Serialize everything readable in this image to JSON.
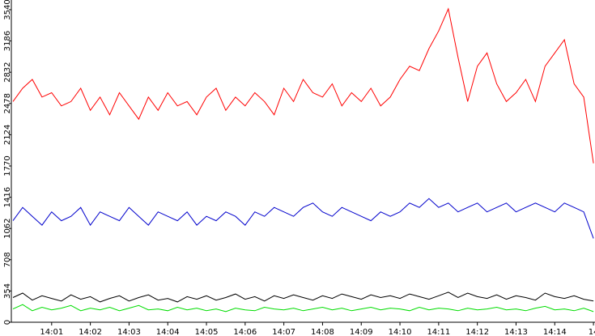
{
  "chart_data": {
    "type": "line",
    "x": [
      0,
      0.25,
      0.5,
      0.75,
      1,
      1.25,
      1.5,
      1.75,
      2,
      2.25,
      2.5,
      2.75,
      3,
      3.25,
      3.5,
      3.75,
      4,
      4.25,
      4.5,
      4.75,
      5,
      5.25,
      5.5,
      5.75,
      6,
      6.25,
      6.5,
      6.75,
      7,
      7.25,
      7.5,
      7.75,
      8,
      8.25,
      8.5,
      8.75,
      9,
      9.25,
      9.5,
      9.75,
      10,
      10.25,
      10.5,
      10.75,
      11,
      11.25,
      11.5,
      11.75,
      12,
      12.25,
      12.5,
      12.75,
      13,
      13.25,
      13.5,
      13.75,
      14,
      14.25,
      14.5,
      14.75,
      15
    ],
    "series": [
      {
        "color": "#ff0000",
        "values": [
          2500,
          2650,
          2750,
          2550,
          2600,
          2450,
          2500,
          2650,
          2400,
          2550,
          2350,
          2600,
          2450,
          2300,
          2550,
          2400,
          2600,
          2450,
          2500,
          2350,
          2550,
          2650,
          2400,
          2550,
          2450,
          2600,
          2500,
          2350,
          2650,
          2500,
          2750,
          2600,
          2550,
          2700,
          2450,
          2600,
          2500,
          2650,
          2450,
          2550,
          2750,
          2900,
          2850,
          3100,
          3300,
          3550,
          3000,
          2500,
          2900,
          3050,
          2700,
          2500,
          2600,
          2750,
          2500,
          2900,
          3050,
          3200,
          2700,
          2550,
          1800
        ]
      },
      {
        "color": "#0000cc",
        "values": [
          1150,
          1300,
          1200,
          1100,
          1250,
          1150,
          1200,
          1300,
          1100,
          1250,
          1200,
          1150,
          1300,
          1200,
          1100,
          1250,
          1200,
          1150,
          1250,
          1100,
          1200,
          1150,
          1250,
          1200,
          1100,
          1250,
          1200,
          1300,
          1250,
          1200,
          1300,
          1350,
          1250,
          1200,
          1300,
          1250,
          1200,
          1150,
          1250,
          1200,
          1250,
          1350,
          1300,
          1400,
          1300,
          1350,
          1250,
          1300,
          1350,
          1250,
          1300,
          1350,
          1250,
          1300,
          1350,
          1300,
          1250,
          1350,
          1300,
          1250,
          950
        ]
      },
      {
        "color": "#000000",
        "values": [
          280,
          330,
          250,
          300,
          270,
          240,
          310,
          260,
          290,
          230,
          270,
          300,
          240,
          280,
          310,
          250,
          270,
          230,
          290,
          260,
          300,
          250,
          280,
          320,
          260,
          290,
          240,
          300,
          270,
          310,
          280,
          250,
          300,
          270,
          320,
          290,
          260,
          310,
          280,
          300,
          270,
          320,
          290,
          260,
          300,
          340,
          280,
          330,
          290,
          270,
          310,
          260,
          300,
          280,
          250,
          330,
          290,
          270,
          300,
          260,
          240
        ]
      },
      {
        "color": "#00dd00",
        "values": [
          150,
          200,
          130,
          170,
          140,
          160,
          190,
          130,
          160,
          140,
          170,
          130,
          160,
          190,
          140,
          150,
          130,
          170,
          140,
          160,
          130,
          150,
          120,
          160,
          140,
          130,
          170,
          150,
          140,
          160,
          130,
          150,
          170,
          140,
          160,
          130,
          150,
          170,
          140,
          160,
          150,
          130,
          170,
          140,
          160,
          150,
          130,
          160,
          140,
          150,
          170,
          140,
          150,
          130,
          160,
          180,
          140,
          150,
          130,
          160,
          120
        ]
      }
    ],
    "xlim": [
      0,
      15.04
    ],
    "xticks": [
      {
        "value": 1,
        "label": "14:01"
      },
      {
        "value": 2,
        "label": "14:02"
      },
      {
        "value": 3,
        "label": "14:03"
      },
      {
        "value": 4,
        "label": "14:04"
      },
      {
        "value": 5,
        "label": "14:05"
      },
      {
        "value": 6,
        "label": "14:06"
      },
      {
        "value": 7,
        "label": "14:07"
      },
      {
        "value": 8,
        "label": "14:08"
      },
      {
        "value": 9,
        "label": "14:09"
      },
      {
        "value": 10,
        "label": "14:10"
      },
      {
        "value": 11,
        "label": "14:11"
      },
      {
        "value": 12,
        "label": "14:12"
      },
      {
        "value": 13,
        "label": "14:13"
      },
      {
        "value": 14,
        "label": "14:14"
      },
      {
        "value": 15,
        "label": "14"
      }
    ],
    "ylim": [
      0,
      3650
    ],
    "yticks": [
      0,
      354,
      708,
      1062,
      1416,
      1770,
      2124,
      2478,
      2832,
      3186,
      3540
    ]
  }
}
